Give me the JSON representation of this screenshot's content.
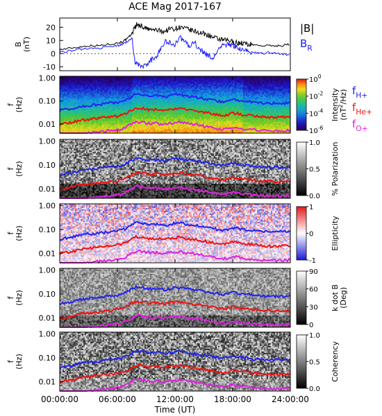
{
  "title": "ACE Mag 2017-167",
  "chart_data": [
    {
      "type": "line",
      "title": "ACE Mag 2017-167",
      "ylabel": "B\n(nT)",
      "yticks": [
        -10,
        0,
        10,
        20
      ],
      "ylim": [
        -13,
        27
      ],
      "xlim": [
        0,
        24
      ],
      "legend": [
        {
          "label": "|B|",
          "color": "#000000"
        },
        {
          "label": "B",
          "sub": "R",
          "color": "#1a1aff"
        }
      ],
      "series": [
        {
          "name": "|B|",
          "color": "#000000",
          "x": [
            0,
            1,
            2,
            3,
            4,
            5,
            6,
            6.5,
            7,
            7.5,
            7.8,
            8,
            8.5,
            9,
            9.5,
            10,
            10.5,
            11,
            11.5,
            12,
            12.5,
            13,
            13.5,
            14,
            14.5,
            15,
            15.5,
            16,
            16.5,
            17,
            17.5,
            18,
            18.5,
            19,
            19.5,
            20,
            21,
            22,
            23,
            24
          ],
          "values": [
            3,
            4,
            5,
            6,
            6,
            7,
            8,
            9,
            11,
            15,
            20,
            22,
            21,
            19,
            18,
            18,
            17,
            17,
            19,
            19,
            20,
            19,
            18,
            17,
            16,
            15,
            14,
            12,
            11,
            10,
            10,
            9,
            8,
            8,
            7,
            7,
            6,
            6,
            6,
            7
          ]
        },
        {
          "name": "B_R",
          "color": "#1a1aff",
          "x": [
            0,
            1,
            2,
            3,
            4,
            5,
            6,
            6.5,
            7,
            7.5,
            7.8,
            8,
            8.5,
            9,
            9.5,
            10,
            10.5,
            11,
            11.5,
            12,
            12.5,
            13,
            13.5,
            14,
            14.5,
            15,
            15.5,
            16,
            16.5,
            17,
            17.5,
            18,
            18.5,
            19,
            19.5,
            20,
            21,
            22,
            23,
            24
          ],
          "values": [
            1,
            2,
            3,
            4,
            4,
            5,
            6,
            7,
            9,
            12,
            -5,
            -8,
            -10,
            -9,
            -5,
            -3,
            4,
            9,
            8,
            7,
            12,
            10,
            5,
            9,
            3,
            1,
            -2,
            -4,
            4,
            6,
            7,
            6,
            5,
            3,
            2,
            1,
            0,
            1,
            0,
            -1
          ]
        }
      ]
    },
    {
      "type": "heatmap",
      "ylabel": "f\n(Hz)",
      "yticks": [
        "1.00",
        "0.10",
        "0.01"
      ],
      "colorbar_label": "Intensity\n(nT^2/Hz)",
      "colorbar_ticks": [
        "10^0",
        "10^-2",
        "10^-4",
        "10^-6"
      ],
      "colorscale": "rainbow"
    },
    {
      "type": "heatmap",
      "ylabel": "f\n(Hz)",
      "yticks": [
        "1.00",
        "0.10",
        "0.01"
      ],
      "colorbar_label": "% Polarization",
      "colorbar_ticks": [
        "1.0",
        "0.5",
        "0.0"
      ],
      "colorscale": "gray"
    },
    {
      "type": "heatmap",
      "ylabel": "f\n(Hz)",
      "yticks": [
        "1.00",
        "0.10",
        "0.01"
      ],
      "colorbar_label": "Ellipticity",
      "colorbar_ticks": [
        "1",
        "0",
        "-1"
      ],
      "colorscale": "blue-white-red"
    },
    {
      "type": "heatmap",
      "ylabel": "f\n(Hz)",
      "yticks": [
        "1.00",
        "0.10",
        "0.01"
      ],
      "colorbar_label": "k dot B\n(Deg)",
      "colorbar_ticks": [
        "90",
        "60",
        "30",
        "0"
      ],
      "colorscale": "gray"
    },
    {
      "type": "heatmap",
      "ylabel": "f\n(Hz)",
      "yticks": [
        "1.00",
        "0.10",
        "0.01"
      ],
      "colorbar_label": "Coherency",
      "colorbar_ticks": [
        "1.0",
        "0.5",
        "0.0"
      ],
      "colorscale": "gray"
    }
  ],
  "gyro_legend": [
    {
      "label": "f",
      "sub": "H+",
      "color": "#2222ee"
    },
    {
      "label": "f",
      "sub": "He+",
      "color": "#ee1111"
    },
    {
      "label": "f",
      "sub": "O+",
      "color": "#dd22dd"
    }
  ],
  "gyro_lines": {
    "x": [
      0,
      1,
      2,
      3,
      4,
      5,
      6,
      6.5,
      7,
      7.5,
      8,
      8.5,
      9,
      9.5,
      10,
      10.5,
      11,
      11.5,
      12,
      12.5,
      13,
      13.5,
      14,
      14.5,
      15,
      15.5,
      16,
      16.5,
      17,
      17.5,
      18,
      18.5,
      19,
      19.5,
      20,
      21,
      22,
      23,
      24
    ],
    "fH": [
      0.04,
      0.045,
      0.055,
      0.065,
      0.07,
      0.08,
      0.09,
      0.1,
      0.12,
      0.16,
      0.2,
      0.19,
      0.17,
      0.16,
      0.17,
      0.16,
      0.15,
      0.17,
      0.18,
      0.19,
      0.17,
      0.16,
      0.15,
      0.14,
      0.13,
      0.12,
      0.11,
      0.1,
      0.095,
      0.1,
      0.12,
      0.11,
      0.1,
      0.1,
      0.09,
      0.085,
      0.08,
      0.08,
      0.085
    ],
    "fHe": [
      0.01,
      0.011,
      0.014,
      0.016,
      0.018,
      0.02,
      0.022,
      0.025,
      0.03,
      0.04,
      0.05,
      0.048,
      0.043,
      0.04,
      0.043,
      0.04,
      0.038,
      0.043,
      0.045,
      0.048,
      0.043,
      0.04,
      0.038,
      0.035,
      0.033,
      0.03,
      0.028,
      0.025,
      0.024,
      0.025,
      0.03,
      0.028,
      0.025,
      0.025,
      0.023,
      0.021,
      0.02,
      0.02,
      0.021
    ],
    "fO": [
      0.0025,
      0.0028,
      0.0034,
      0.004,
      0.0045,
      0.005,
      0.0055,
      0.006,
      0.0075,
      0.01,
      0.0125,
      0.012,
      0.011,
      0.01,
      0.011,
      0.01,
      0.0095,
      0.011,
      0.011,
      0.012,
      0.011,
      0.01,
      0.0095,
      0.009,
      0.008,
      0.0075,
      0.007,
      0.006,
      0.006,
      0.006,
      0.0075,
      0.007,
      0.006,
      0.006,
      0.0058,
      0.0053,
      0.005,
      0.005,
      0.0053
    ]
  },
  "x_axis": {
    "ticks": [
      "00:00:00",
      "06:00:00",
      "12:00:00",
      "18:00:00",
      "24:00:00"
    ],
    "tick_values": [
      0,
      6,
      12,
      18,
      24
    ],
    "label": "Time (UT)"
  },
  "freq_range": [
    0.004,
    1.2
  ]
}
